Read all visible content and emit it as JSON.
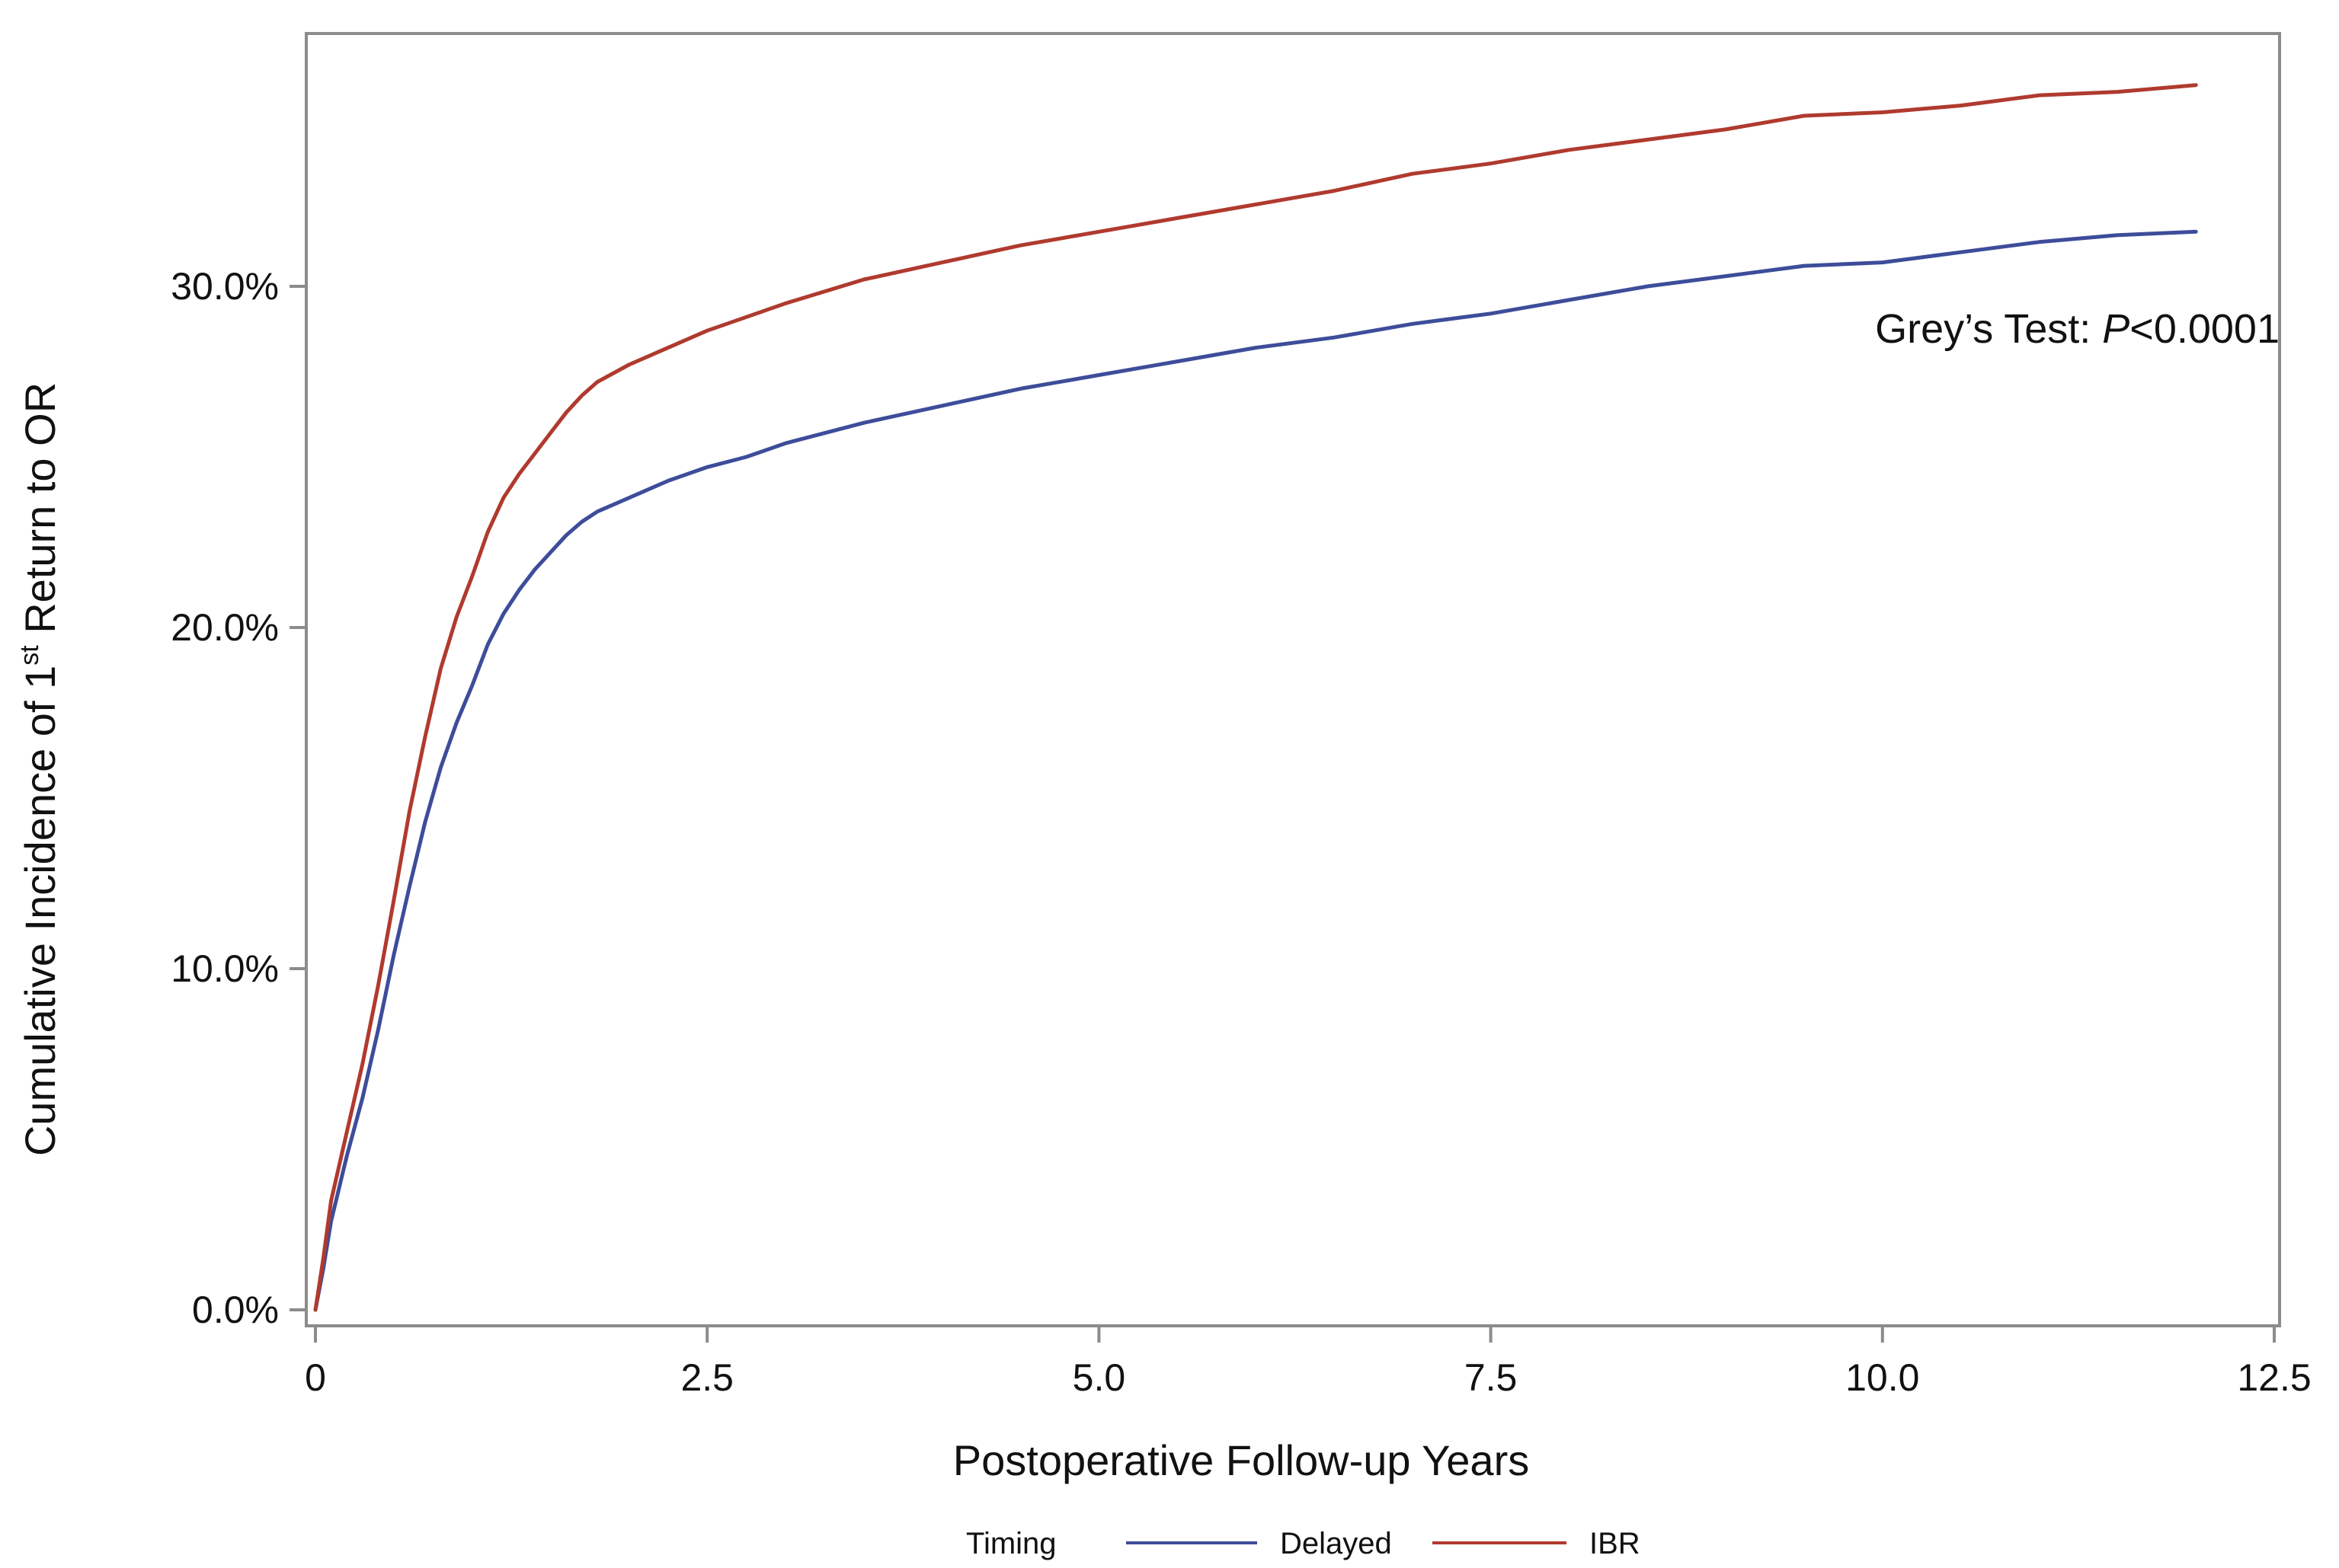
{
  "chart_data": {
    "type": "line",
    "title": "",
    "xlabel": "Postoperative Follow-up Years",
    "ylabel_parts": {
      "prefix": "Cumulative Incidence of 1",
      "superscript": "st",
      "suffix": " Return to OR"
    },
    "xlim": [
      0,
      12.5
    ],
    "ylim": [
      0,
      0.37
    ],
    "x_ticks": [
      {
        "value": 0,
        "label": "0"
      },
      {
        "value": 2.5,
        "label": "2.5"
      },
      {
        "value": 5,
        "label": "5.0"
      },
      {
        "value": 7.5,
        "label": "7.5"
      },
      {
        "value": 10,
        "label": "10.0"
      },
      {
        "value": 12.5,
        "label": "12.5"
      }
    ],
    "y_ticks": [
      {
        "value": 0,
        "label": "0.0%"
      },
      {
        "value": 0.1,
        "label": "10.0%"
      },
      {
        "value": 0.2,
        "label": "20.0%"
      },
      {
        "value": 0.3,
        "label": "30.0%"
      }
    ],
    "grid": false,
    "annotation": {
      "prefix": "Grey’s Test: ",
      "italic": "P",
      "suffix": "<0.0001"
    },
    "legend": {
      "title": "Timing",
      "placement": "bottom-center"
    },
    "series": [
      {
        "name": "Delayed",
        "color": "#3d4d9a",
        "x": [
          0,
          0.05,
          0.1,
          0.2,
          0.3,
          0.4,
          0.5,
          0.6,
          0.7,
          0.8,
          0.9,
          1.0,
          1.1,
          1.2,
          1.3,
          1.4,
          1.5,
          1.6,
          1.7,
          1.8,
          2.0,
          2.25,
          2.5,
          2.75,
          3.0,
          3.5,
          4.0,
          4.5,
          5.0,
          5.5,
          6.0,
          6.5,
          7.0,
          7.5,
          8.0,
          8.5,
          9.0,
          9.5,
          10.0,
          10.5,
          11.0,
          11.5,
          12.0
        ],
        "y": [
          0,
          0.012,
          0.026,
          0.045,
          0.062,
          0.082,
          0.104,
          0.124,
          0.143,
          0.159,
          0.172,
          0.183,
          0.195,
          0.204,
          0.211,
          0.217,
          0.222,
          0.227,
          0.231,
          0.234,
          0.238,
          0.243,
          0.247,
          0.25,
          0.254,
          0.26,
          0.265,
          0.27,
          0.274,
          0.278,
          0.282,
          0.285,
          0.289,
          0.292,
          0.296,
          0.3,
          0.303,
          0.306,
          0.307,
          0.31,
          0.313,
          0.315,
          0.316
        ]
      },
      {
        "name": "IBR",
        "color": "#b03a2e",
        "x": [
          0,
          0.05,
          0.1,
          0.2,
          0.3,
          0.4,
          0.5,
          0.6,
          0.7,
          0.8,
          0.9,
          1.0,
          1.1,
          1.2,
          1.3,
          1.4,
          1.5,
          1.6,
          1.7,
          1.8,
          2.0,
          2.25,
          2.5,
          2.75,
          3.0,
          3.5,
          4.0,
          4.5,
          5.0,
          5.5,
          6.0,
          6.5,
          7.0,
          7.5,
          8.0,
          8.5,
          9.0,
          9.5,
          10.0,
          10.5,
          11.0,
          11.5,
          12.0
        ],
        "y": [
          0,
          0.015,
          0.032,
          0.052,
          0.072,
          0.095,
          0.12,
          0.146,
          0.168,
          0.188,
          0.203,
          0.215,
          0.228,
          0.238,
          0.245,
          0.251,
          0.257,
          0.263,
          0.268,
          0.272,
          0.277,
          0.282,
          0.287,
          0.291,
          0.295,
          0.302,
          0.307,
          0.312,
          0.316,
          0.32,
          0.324,
          0.328,
          0.333,
          0.336,
          0.34,
          0.343,
          0.346,
          0.35,
          0.351,
          0.353,
          0.356,
          0.357,
          0.359
        ]
      }
    ]
  }
}
